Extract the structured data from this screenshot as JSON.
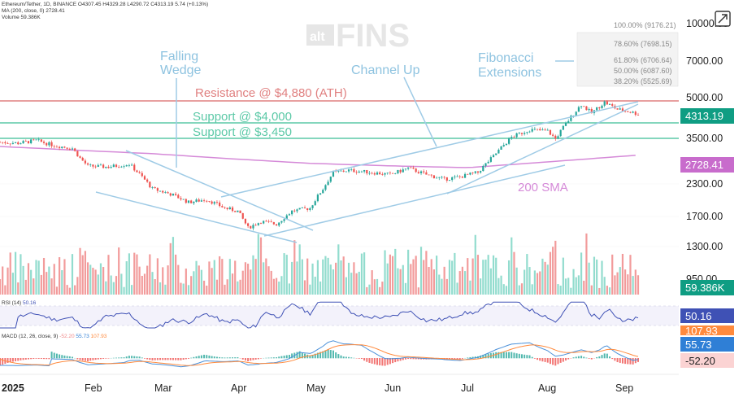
{
  "legend": {
    "line1": "Ethereum/Tether, 1D, BINANCE  O4307.45  H4329.28  L4290.72  C4313.19  5.74 (+0.13%)",
    "line2": "MA (200, close, 0)  2728.41",
    "line3": "Volume  59.386K"
  },
  "watermark": {
    "small": "alt",
    "big": "FINS"
  },
  "annotations": {
    "falling_wedge": [
      "Falling",
      "Wedge"
    ],
    "channel_up": "Channel Up",
    "fib_ext": [
      "Fibonacci",
      "Extensions"
    ],
    "resistance": "Resistance @ $4,880 (ATH)",
    "support1": "Support @ $4,000",
    "support2": "Support @ $3,450",
    "sma": "200 SMA"
  },
  "fib_levels": [
    "100.00% (9176.21)",
    "78.60% (7698.15)",
    "61.80% (6706.64)",
    "50.00% (6087.60)",
    "38.20% (5525.69)"
  ],
  "rsi_legend": {
    "label": "RSI (14)",
    "value": "50.16"
  },
  "macd_legend": {
    "label": "MACD (12, 26, close, 9)",
    "v1": "-52.20",
    "v2": "55.73",
    "v3": "107.93"
  },
  "price_axis": [
    "10000.00",
    "7000.00",
    "5000.00",
    "3500.00",
    "2300.00",
    "1700.00",
    "1300.00",
    "950.00"
  ],
  "badges": {
    "price": "4313.19",
    "ma": "2728.41",
    "volume": "59.386K",
    "rsi": "50.16",
    "macd_a": "107.93",
    "macd_b": "55.73",
    "macd_c": "-52.20"
  },
  "time_axis": [
    "2025",
    "Feb",
    "Mar",
    "Apr",
    "May",
    "Jun",
    "Jul",
    "Aug",
    "Sep"
  ],
  "colors": {
    "up": "#7fd6c6",
    "down": "#f08a8a",
    "resistance": "#e08080",
    "support": "#5cc9a7",
    "sma": "#d58ad8",
    "annotation": "#8ec3e0",
    "rsi": "#3f51b5",
    "macd": "#4a90d9",
    "signal": "#ff8a3d"
  },
  "chart_data": {
    "type": "candlestick",
    "symbol": "Ethereum/Tether",
    "x_range": [
      "2025-01-01",
      "2025-09-05"
    ],
    "price": {
      "dates": [
        "2025-01-01",
        "2025-01-08",
        "2025-01-15",
        "2025-01-22",
        "2025-01-29",
        "2025-02-01",
        "2025-02-04",
        "2025-02-12",
        "2025-02-20",
        "2025-02-25",
        "2025-03-01",
        "2025-03-08",
        "2025-03-15",
        "2025-03-22",
        "2025-03-29",
        "2025-04-03",
        "2025-04-07",
        "2025-04-12",
        "2025-04-18",
        "2025-04-24",
        "2025-05-01",
        "2025-05-06",
        "2025-05-10",
        "2025-05-16",
        "2025-05-25",
        "2025-06-01",
        "2025-06-08",
        "2025-06-15",
        "2025-06-22",
        "2025-06-28",
        "2025-07-05",
        "2025-07-11",
        "2025-07-18",
        "2025-07-25",
        "2025-08-01",
        "2025-08-04",
        "2025-08-10",
        "2025-08-14",
        "2025-08-18",
        "2025-08-23",
        "2025-08-28",
        "2025-09-02",
        "2025-09-05"
      ],
      "close": [
        3350,
        3320,
        3400,
        3250,
        3170,
        2900,
        2700,
        2680,
        2750,
        2450,
        2200,
        2100,
        1950,
        2000,
        1850,
        1800,
        1550,
        1640,
        1600,
        1800,
        1850,
        2200,
        2550,
        2600,
        2550,
        2500,
        2650,
        2500,
        2400,
        2450,
        2550,
        2950,
        3500,
        3750,
        3700,
        3450,
        4200,
        4700,
        4350,
        4800,
        4500,
        4400,
        4313.19
      ]
    },
    "levels": {
      "resistance_ath": 4880,
      "support_1": 4000,
      "support_2": 3450
    },
    "sma200": {
      "dates": [
        "2025-01-01",
        "2025-03-01",
        "2025-05-01",
        "2025-07-01",
        "2025-09-05"
      ],
      "values": [
        2950,
        2850,
        2650,
        2520,
        2728.41
      ]
    },
    "fibonacci_extensions": [
      {
        "level": "100.00%",
        "price": 9176.21
      },
      {
        "level": "78.60%",
        "price": 7698.15
      },
      {
        "level": "61.80%",
        "price": 6706.64
      },
      {
        "level": "50.00%",
        "price": 6087.6
      },
      {
        "level": "38.20%",
        "price": 5525.69
      }
    ],
    "volume_last": "59.386K",
    "rsi_last": 50.16,
    "macd_last": {
      "macd": 55.73,
      "signal": 107.93,
      "histogram": -52.2
    },
    "y_scale": "log",
    "y_ticks": [
      10000,
      7000,
      5000,
      3500,
      2300,
      1700,
      1300,
      950
    ]
  }
}
